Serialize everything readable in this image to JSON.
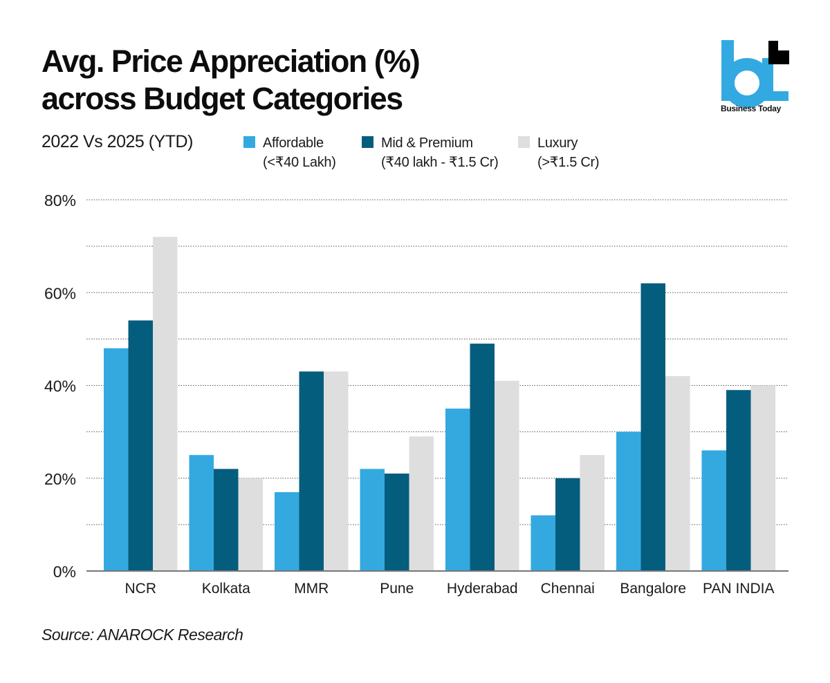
{
  "header": {
    "title_line1": "Avg. Price Appreciation (%)",
    "title_line2": "across Budget Categories",
    "subtitle": "2022 Vs 2025 (YTD)"
  },
  "logo": {
    "mark": "bt",
    "text": "Business Today",
    "colors": {
      "blue": "#33a9e1",
      "black": "#000000"
    }
  },
  "legend": [
    {
      "name": "Affordable",
      "range": "(<₹40 Lakh)",
      "color": "#33a9e0"
    },
    {
      "name": "Mid & Premium",
      "range": "(₹40 lakh - ₹1.5 Cr)",
      "color": "#055d7e"
    },
    {
      "name": "Luxury",
      "range": "(>₹1.5 Cr)",
      "color": "#dedede"
    }
  ],
  "source": "Source: ANAROCK Research",
  "chart_data": {
    "type": "bar",
    "title": "Avg. Price Appreciation (%) across Budget Categories",
    "subtitle": "2022 Vs 2025 (YTD)",
    "xlabel": "",
    "ylabel": "",
    "ylim": [
      0,
      80
    ],
    "yticks": [
      0,
      20,
      40,
      60,
      80
    ],
    "ytick_labels": [
      "0%",
      "20%",
      "40%",
      "60%",
      "80%"
    ],
    "grid": true,
    "grid_step": 10,
    "legend_position": "top",
    "categories": [
      "NCR",
      "Kolkata",
      "MMR",
      "Pune",
      "Hyderabad",
      "Chennai",
      "Bangalore",
      "PAN INDIA"
    ],
    "series": [
      {
        "name": "Affordable (<₹40 Lakh)",
        "color": "#33a9e0",
        "values": [
          48,
          25,
          17,
          22,
          35,
          12,
          30,
          26
        ]
      },
      {
        "name": "Mid & Premium (₹40 lakh - ₹1.5 Cr)",
        "color": "#055d7e",
        "values": [
          54,
          22,
          43,
          21,
          49,
          20,
          62,
          39
        ]
      },
      {
        "name": "Luxury (>₹1.5 Cr)",
        "color": "#dedede",
        "values": [
          72,
          20,
          43,
          29,
          41,
          25,
          42,
          40
        ]
      }
    ]
  }
}
